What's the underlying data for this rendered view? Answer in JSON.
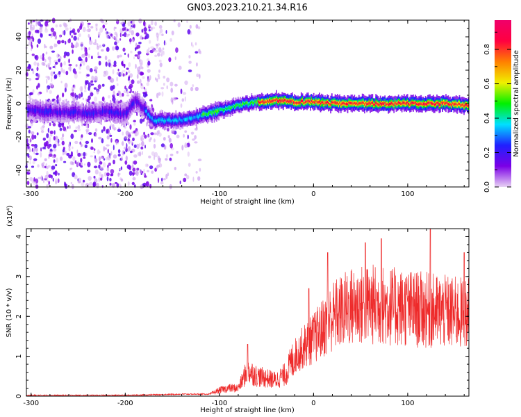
{
  "title": "GN03.2023.210.21.34.R16",
  "chart_data": [
    {
      "type": "heatmap",
      "xlabel": "Height of straight line (km)",
      "ylabel": "Frequency (Hz)",
      "xlim": [
        -305,
        165
      ],
      "ylim": [
        -50,
        50
      ],
      "x_ticks": [
        -300,
        -200,
        -100,
        0,
        100
      ],
      "y_ticks": [
        -40,
        -20,
        0,
        20,
        40
      ],
      "colorbar": {
        "label": "Normalized spectral amplitude",
        "range": [
          0,
          0.97
        ],
        "ticks": [
          0.0,
          0.2,
          0.4,
          0.6,
          0.8
        ],
        "colormap": [
          "#e8d2f4",
          "#7b00e6",
          "#2020ff",
          "#00e0ff",
          "#00f000",
          "#f0f000",
          "#ff8000",
          "#ff0040",
          "#f0006a"
        ]
      },
      "ridge": [
        {
          "x": -300,
          "y": -4
        },
        {
          "x": -280,
          "y": -5
        },
        {
          "x": -260,
          "y": -5
        },
        {
          "x": -240,
          "y": -6
        },
        {
          "x": -220,
          "y": -5
        },
        {
          "x": -200,
          "y": -6
        },
        {
          "x": -190,
          "y": 2
        },
        {
          "x": -180,
          "y": -4
        },
        {
          "x": -170,
          "y": -10
        },
        {
          "x": -150,
          "y": -10
        },
        {
          "x": -130,
          "y": -9
        },
        {
          "x": -120,
          "y": -7
        },
        {
          "x": -100,
          "y": -4
        },
        {
          "x": -80,
          "y": -1
        },
        {
          "x": -60,
          "y": 1
        },
        {
          "x": -40,
          "y": 2
        },
        {
          "x": -20,
          "y": 1
        },
        {
          "x": 0,
          "y": 1
        },
        {
          "x": 20,
          "y": 0
        },
        {
          "x": 40,
          "y": 0
        },
        {
          "x": 60,
          "y": 0
        },
        {
          "x": 80,
          "y": 0
        },
        {
          "x": 100,
          "y": 0
        },
        {
          "x": 120,
          "y": 0
        },
        {
          "x": 140,
          "y": 0
        },
        {
          "x": 160,
          "y": -1
        }
      ]
    },
    {
      "type": "line",
      "xlabel": "Height of straight line (km)",
      "ylabel": "SNR (10 * v/v)",
      "y_multiplier": "(x10⁴)",
      "xlim": [
        -305,
        165
      ],
      "ylim": [
        0,
        4.2
      ],
      "x_ticks": [
        -300,
        -200,
        -100,
        0,
        100
      ],
      "y_ticks": [
        0,
        1,
        2,
        3,
        4
      ],
      "color": "#ee2a2a",
      "envelope": [
        {
          "x": -305,
          "y": 0.02
        },
        {
          "x": -200,
          "y": 0.02
        },
        {
          "x": -140,
          "y": 0.05
        },
        {
          "x": -110,
          "y": 0.05
        },
        {
          "x": -100,
          "y": 0.15
        },
        {
          "x": -90,
          "y": 0.2
        },
        {
          "x": -80,
          "y": 0.2
        },
        {
          "x": -70,
          "y": 0.65
        },
        {
          "x": -60,
          "y": 0.5
        },
        {
          "x": -50,
          "y": 0.45
        },
        {
          "x": -40,
          "y": 0.4
        },
        {
          "x": -30,
          "y": 0.55
        },
        {
          "x": -20,
          "y": 1.0
        },
        {
          "x": -10,
          "y": 1.25
        },
        {
          "x": 0,
          "y": 1.45
        },
        {
          "x": 10,
          "y": 1.7
        },
        {
          "x": 20,
          "y": 2.0
        },
        {
          "x": 40,
          "y": 2.25
        },
        {
          "x": 60,
          "y": 2.3
        },
        {
          "x": 80,
          "y": 2.25
        },
        {
          "x": 100,
          "y": 2.2
        },
        {
          "x": 120,
          "y": 2.15
        },
        {
          "x": 140,
          "y": 2.1
        },
        {
          "x": 165,
          "y": 2.05
        }
      ],
      "peaks": [
        {
          "x": -70,
          "y": 1.3
        },
        {
          "x": -5,
          "y": 2.7
        },
        {
          "x": 15,
          "y": 3.6
        },
        {
          "x": 55,
          "y": 3.85
        },
        {
          "x": 72,
          "y": 3.95
        },
        {
          "x": 124,
          "y": 4.2
        },
        {
          "x": 160,
          "y": 3.6
        }
      ]
    }
  ]
}
